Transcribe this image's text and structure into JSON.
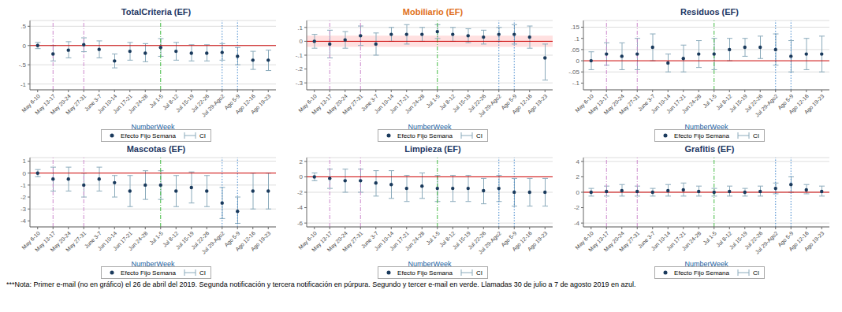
{
  "chart_data": [
    {
      "type": "errorbar",
      "title": "TotalCriteria (EF)",
      "title_color": "#1f3864",
      "x_label": "NumberWeek",
      "x_label_color": "#2060a0",
      "categories": [
        "May 6-10",
        "May 13-17",
        "May 20-24",
        "May 27-31",
        "June 3-7",
        "Jun 10-14",
        "Jun 17-21",
        "Jun 24-28",
        "Jul 1-5",
        "Jul 8-12",
        "Jul 15-19",
        "Jul 22-26",
        "Jul 29-Ago2",
        "Ago 5-9",
        "Ago 12-16",
        "Ago 19-23"
      ],
      "series": [
        {
          "name": "Efecto Fijo Semana",
          "color": "#1a3a5c",
          "marker": "circle",
          "values": [
            0.0,
            -0.22,
            -0.12,
            0.02,
            -0.1,
            -0.4,
            -0.15,
            -0.2,
            -0.05,
            -0.15,
            -0.2,
            -0.2,
            -0.18,
            -0.28,
            -0.38,
            -0.38
          ],
          "ci_name": "CI",
          "ci_color": "#8aaabb",
          "ci_low": [
            -0.08,
            -0.4,
            -0.32,
            -0.16,
            -0.32,
            -0.58,
            -0.38,
            -0.42,
            -0.28,
            -0.38,
            -0.4,
            -0.4,
            -0.38,
            -0.5,
            -0.62,
            -0.65
          ],
          "ci_high": [
            0.08,
            0.0,
            0.1,
            0.2,
            0.12,
            -0.22,
            0.08,
            0.05,
            0.18,
            0.08,
            0.02,
            0.02,
            0.05,
            -0.05,
            -0.15,
            -0.12
          ]
        }
      ],
      "ylim": [
        -1.15,
        0.65
      ],
      "yticks": [
        -1,
        {
          "value": -0.5,
          "label": "-.5"
        },
        0,
        {
          "value": 0.5,
          "label": ".5"
        }
      ],
      "ref_line": {
        "y": 0,
        "color": "#cc0000"
      },
      "vlines": [
        {
          "x": "May 13-17",
          "color": "#cc88cc",
          "line_style": "dashdot"
        },
        {
          "x": "May 27-31",
          "color": "#cc88cc",
          "line_style": "dashdot"
        },
        {
          "x": "Jul 1-5",
          "color": "#44bb44",
          "line_style": "dashdot"
        },
        {
          "x": "Jul 29-Ago2",
          "color": "#4488cc",
          "line_style": "dotted"
        },
        {
          "x": "Ago 5-9",
          "color": "#4488cc",
          "line_style": "dotted"
        }
      ],
      "grid": true,
      "legend": "bottom"
    },
    {
      "type": "errorbar",
      "title": "Mobiliario (EF)",
      "title_color": "#e07020",
      "x_label": "NumberWeek",
      "x_label_color": "#2060a0",
      "categories": [
        "May 6-10",
        "May 13-17",
        "May 20-24",
        "May 27-31",
        "June 3-7",
        "Jun 10-14",
        "Jun 17-21",
        "Jun 24-28",
        "Jul 1-5",
        "Jul 8-12",
        "Jul 15-19",
        "Jul 22-26",
        "Jul 29-Ago2",
        "Ago 5-9",
        "Ago 12-16",
        "Ago 19-23"
      ],
      "series": [
        {
          "name": "Efecto Fijo Semana",
          "color": "#1a3a5c",
          "marker": "circle",
          "values": [
            0.0,
            -0.02,
            0.01,
            0.04,
            -0.02,
            0.05,
            0.05,
            0.05,
            0.07,
            0.05,
            0.04,
            0.03,
            0.05,
            0.05,
            0.03,
            -0.12
          ],
          "ci_name": "CI",
          "ci_color": "#8aaabb",
          "ci_low": [
            -0.05,
            -0.12,
            -0.05,
            -0.03,
            -0.1,
            0.0,
            -0.02,
            0.0,
            0.02,
            0.0,
            -0.01,
            -0.02,
            0.0,
            -0.02,
            -0.05,
            -0.28
          ],
          "ci_high": [
            0.05,
            0.08,
            0.07,
            0.11,
            0.06,
            0.1,
            0.12,
            0.1,
            0.12,
            0.1,
            0.09,
            0.08,
            0.1,
            0.12,
            0.11,
            -0.02
          ]
        }
      ],
      "ylim": [
        -0.35,
        0.15
      ],
      "yticks": [
        {
          "value": -0.3,
          "label": "-.3"
        },
        {
          "value": -0.2,
          "label": "-.2"
        },
        {
          "value": -0.1,
          "label": "-.1"
        },
        0,
        {
          "value": 0.1,
          "label": ".1"
        }
      ],
      "band": {
        "from": -0.04,
        "to": 0.04,
        "color": "#ffcccc"
      },
      "ref_line": {
        "y": 0,
        "color": "#cc0000"
      },
      "vlines": [
        {
          "x": "May 13-17",
          "color": "#cc88cc",
          "line_style": "dashdot"
        },
        {
          "x": "May 27-31",
          "color": "#cc88cc",
          "line_style": "dashdot"
        },
        {
          "x": "Jul 1-5",
          "color": "#44bb44",
          "line_style": "dashdot"
        },
        {
          "x": "Jul 29-Ago2",
          "color": "#4488cc",
          "line_style": "dotted"
        },
        {
          "x": "Ago 5-9",
          "color": "#4488cc",
          "line_style": "dotted"
        }
      ],
      "grid": true,
      "legend": "bottom"
    },
    {
      "type": "errorbar",
      "title": "Residuos (EF)",
      "title_color": "#1f3864",
      "x_label": "NumberWeek",
      "x_label_color": "#2060a0",
      "categories": [
        "May 6-10",
        "May 13-17",
        "May 20-24",
        "May 27-31",
        "June 3-7",
        "Jun 10-14",
        "Jun 17-21",
        "Jun 24-28",
        "Jul 1-5",
        "Jul 8-12",
        "Jul 15-19",
        "Jul 22-26",
        "Jul 29-Ago2",
        "Ago 5-9",
        "Ago 12-16",
        "Ago 19-23"
      ],
      "series": [
        {
          "name": "Efecto Fijo Semana",
          "color": "#1a3a5c",
          "marker": "circle",
          "values": [
            0.0,
            0.03,
            0.02,
            0.03,
            0.06,
            -0.01,
            0.01,
            0.03,
            0.03,
            0.05,
            0.06,
            0.06,
            0.05,
            0.02,
            0.03,
            0.03
          ],
          "ci_name": "CI",
          "ci_color": "#8aaabb",
          "ci_low": [
            -0.04,
            -0.02,
            -0.04,
            -0.04,
            0.0,
            -0.05,
            -0.05,
            -0.03,
            -0.04,
            0.0,
            0.02,
            0.01,
            -0.02,
            -0.05,
            -0.04,
            -0.05
          ],
          "ci_high": [
            0.04,
            0.08,
            0.08,
            0.1,
            0.12,
            0.03,
            0.07,
            0.09,
            0.1,
            0.1,
            0.1,
            0.11,
            0.12,
            0.09,
            0.1,
            0.11
          ]
        }
      ],
      "ylim": [
        -0.13,
        0.18
      ],
      "yticks": [
        {
          "value": -0.1,
          "label": "-.1"
        },
        {
          "value": -0.05,
          "label": "-.05"
        },
        0,
        {
          "value": 0.05,
          "label": ".05"
        },
        {
          "value": 0.1,
          "label": ".1"
        },
        {
          "value": 0.15,
          "label": ".15"
        }
      ],
      "ref_line": {
        "y": 0,
        "color": "#cc0000"
      },
      "vlines": [
        {
          "x": "May 13-17",
          "color": "#cc88cc",
          "line_style": "dashdot"
        },
        {
          "x": "May 27-31",
          "color": "#cc88cc",
          "line_style": "dashdot"
        },
        {
          "x": "Jul 1-5",
          "color": "#44bb44",
          "line_style": "dashdot"
        },
        {
          "x": "Jul 29-Ago2",
          "color": "#4488cc",
          "line_style": "dotted"
        },
        {
          "x": "Ago 5-9",
          "color": "#4488cc",
          "line_style": "dotted"
        }
      ],
      "grid": true,
      "legend": "bottom"
    },
    {
      "type": "errorbar",
      "title": "Mascotas (EF)",
      "title_color": "#1f3864",
      "x_label": "NumberWeek",
      "x_label_color": "#2060a0",
      "categories": [
        "May 6-10",
        "May 13-17",
        "May 20-24",
        "May 27-31",
        "June 3-7",
        "Jun 10-14",
        "Jun 17-21",
        "Jun 24-28",
        "Jul 1-5",
        "Jul 8-12",
        "Jul 15-19",
        "Jul 22-26",
        "Jul 29-Ago2",
        "Ago 5-9",
        "Ago 12-16",
        "Ago 19-23"
      ],
      "series": [
        {
          "name": "Efecto Fijo Semana",
          "color": "#1a3a5c",
          "marker": "circle",
          "values": [
            0.0,
            -0.5,
            -0.5,
            -1.0,
            -0.5,
            -0.8,
            -1.5,
            -1.0,
            -1.0,
            -1.5,
            -1.2,
            -1.5,
            -2.5,
            -3.2,
            -1.5,
            -1.5
          ],
          "ci_name": "CI",
          "ci_color": "#8aaabb",
          "ci_low": [
            -0.3,
            -1.5,
            -1.5,
            -2.0,
            -1.5,
            -2.0,
            -2.8,
            -2.2,
            -2.2,
            -2.8,
            -2.5,
            -2.8,
            -3.8,
            -4.2,
            -3.0,
            -3.0
          ],
          "ci_high": [
            0.3,
            0.5,
            0.5,
            0.0,
            0.5,
            -0.2,
            -0.2,
            0.2,
            0.2,
            -0.2,
            0.1,
            -0.2,
            -1.2,
            -2.0,
            0.0,
            0.0
          ]
        }
      ],
      "ylim": [
        -4.5,
        1.3
      ],
      "yticks": [
        -4,
        -3,
        -2,
        -1,
        0,
        1
      ],
      "ref_line": {
        "y": 0,
        "color": "#cc0000"
      },
      "vlines": [
        {
          "x": "May 13-17",
          "color": "#cc88cc",
          "line_style": "dashdot"
        },
        {
          "x": "May 27-31",
          "color": "#cc88cc",
          "line_style": "dashdot"
        },
        {
          "x": "Jul 1-5",
          "color": "#44bb44",
          "line_style": "dashdot"
        },
        {
          "x": "Jul 29-Ago2",
          "color": "#4488cc",
          "line_style": "dotted"
        },
        {
          "x": "Ago 5-9",
          "color": "#4488cc",
          "line_style": "dotted"
        }
      ],
      "grid": true,
      "legend": "bottom"
    },
    {
      "type": "errorbar",
      "title": "Limpieza (EF)",
      "title_color": "#1f3864",
      "x_label": "NumberWeek",
      "x_label_color": "#2060a0",
      "categories": [
        "May 6-10",
        "May 13-17",
        "May 20-24",
        "May 27-31",
        "June 3-7",
        "Jun 10-14",
        "Jun 17-21",
        "Jun 24-28",
        "Jul 1-5",
        "Jul 8-12",
        "Jul 15-19",
        "Jul 22-26",
        "Jul 29-Ago2",
        "Ago 5-9",
        "Ago 12-16",
        "Ago 19-23"
      ],
      "series": [
        {
          "name": "Efecto Fijo Semana",
          "color": "#1a3a5c",
          "marker": "circle",
          "values": [
            0.0,
            -0.2,
            -0.5,
            -0.5,
            -0.8,
            -1.0,
            -1.5,
            -1.2,
            -1.5,
            -1.5,
            -1.5,
            -1.8,
            -1.5,
            -2.0,
            -2.0,
            -2.0
          ],
          "ci_name": "CI",
          "ci_color": "#8aaabb",
          "ci_low": [
            -0.5,
            -1.5,
            -2.0,
            -2.0,
            -2.5,
            -2.8,
            -3.2,
            -2.8,
            -3.2,
            -3.2,
            -3.2,
            -3.5,
            -3.2,
            -3.8,
            -3.8,
            -3.8
          ],
          "ci_high": [
            0.5,
            1.0,
            1.0,
            1.0,
            0.8,
            0.8,
            0.2,
            0.5,
            0.2,
            0.2,
            0.2,
            -0.2,
            0.2,
            -0.2,
            -0.2,
            -0.2
          ]
        }
      ],
      "ylim": [
        -6.5,
        2.5
      ],
      "yticks": [
        -6,
        -4,
        -2,
        0,
        2
      ],
      "ref_line": {
        "y": 0,
        "color": "#cc0000"
      },
      "vlines": [
        {
          "x": "May 13-17",
          "color": "#cc88cc",
          "line_style": "dashdot"
        },
        {
          "x": "May 27-31",
          "color": "#cc88cc",
          "line_style": "dashdot"
        },
        {
          "x": "Jul 1-5",
          "color": "#44bb44",
          "line_style": "dashdot"
        },
        {
          "x": "Jul 29-Ago2",
          "color": "#4488cc",
          "line_style": "dotted"
        },
        {
          "x": "Ago 5-9",
          "color": "#4488cc",
          "line_style": "dotted"
        }
      ],
      "grid": true,
      "legend": "bottom"
    },
    {
      "type": "errorbar",
      "title": "Grafitis (EF)",
      "title_color": "#1f3864",
      "x_label": "NumberWeek",
      "x_label_color": "#2060a0",
      "categories": [
        "May 6-10",
        "May 13-17",
        "May 20-24",
        "May 27-31",
        "June 3-7",
        "Jun 10-14",
        "Jun 17-21",
        "Jun 24-28",
        "Jul 1-5",
        "Jul 8-12",
        "Jul 15-19",
        "Jul 22-26",
        "Jul 29-Ago2",
        "Ago 5-9",
        "Ago 12-16",
        "Ago 19-23"
      ],
      "series": [
        {
          "name": "Efecto Fijo Semana",
          "color": "#1a3a5c",
          "marker": "circle",
          "values": [
            0.0,
            0.1,
            0.2,
            0.1,
            0.0,
            0.2,
            0.3,
            0.1,
            0.0,
            0.1,
            0.0,
            0.1,
            0.5,
            1.0,
            0.3,
            0.1
          ],
          "ci_name": "CI",
          "ci_color": "#8aaabb",
          "ci_low": [
            -0.5,
            -0.5,
            -0.5,
            -0.5,
            -0.5,
            -0.5,
            -0.5,
            -0.5,
            -0.5,
            -0.5,
            -0.5,
            -0.5,
            -0.2,
            0.0,
            -0.2,
            -0.5
          ],
          "ci_high": [
            0.5,
            0.8,
            1.0,
            0.8,
            0.5,
            1.0,
            1.2,
            0.8,
            0.5,
            0.8,
            0.5,
            0.8,
            1.2,
            2.0,
            1.0,
            0.8
          ]
        }
      ],
      "ylim": [
        -4.5,
        4.5
      ],
      "yticks": [
        -4,
        -2,
        0,
        2,
        4
      ],
      "ref_line": {
        "y": 0,
        "color": "#cc0000"
      },
      "vlines": [
        {
          "x": "May 13-17",
          "color": "#cc88cc",
          "line_style": "dashdot"
        },
        {
          "x": "May 27-31",
          "color": "#cc88cc",
          "line_style": "dashdot"
        },
        {
          "x": "Jul 1-5",
          "color": "#44bb44",
          "line_style": "dashdot"
        },
        {
          "x": "Jul 29-Ago2",
          "color": "#4488cc",
          "line_style": "dotted"
        },
        {
          "x": "Ago 5-9",
          "color": "#4488cc",
          "line_style": "dotted"
        }
      ],
      "grid": true,
      "legend": "bottom"
    }
  ],
  "annotations": [
    {
      "text": "***Nota:  Primer e-mail (no en gráfico) el 26 de abril del 2019. Segunda notificación y tercera notificación en púrpura. Segundo y tercer e-mail en verde. Llamadas 30 de julio a 7 de agosto 2019 en azul."
    }
  ]
}
